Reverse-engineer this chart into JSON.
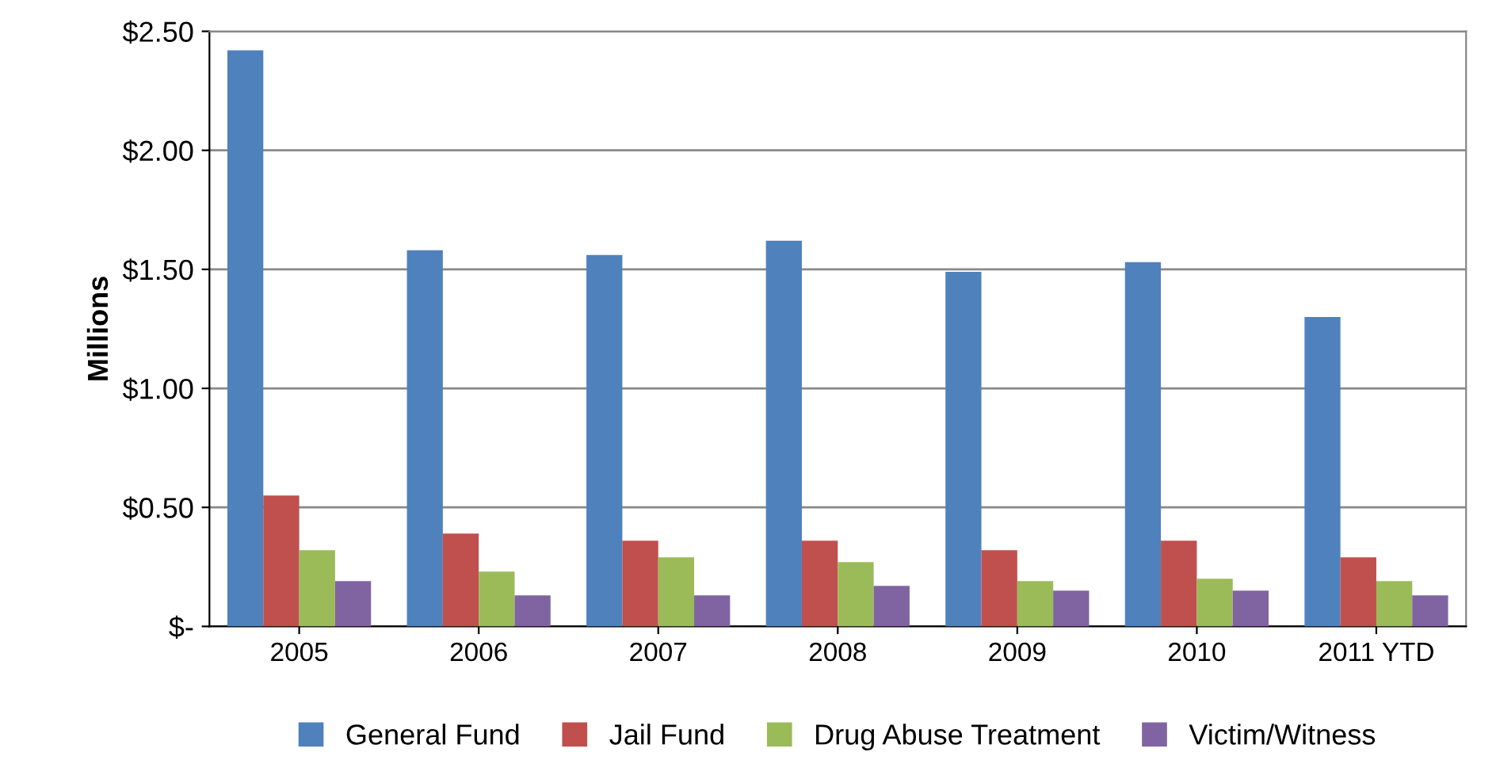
{
  "chart_data": {
    "type": "bar",
    "ylabel": "Millions",
    "categories": [
      "2005",
      "2006",
      "2007",
      "2008",
      "2009",
      "2010",
      "2011 YTD"
    ],
    "series": [
      {
        "name": "General Fund",
        "color": "#4f81bd",
        "values": [
          2.42,
          1.58,
          1.56,
          1.62,
          1.49,
          1.53,
          1.3
        ]
      },
      {
        "name": "Jail Fund",
        "color": "#c0504d",
        "values": [
          0.55,
          0.39,
          0.36,
          0.36,
          0.32,
          0.36,
          0.29
        ]
      },
      {
        "name": "Drug Abuse Treatment",
        "color": "#9bbb59",
        "values": [
          0.32,
          0.23,
          0.29,
          0.27,
          0.19,
          0.2,
          0.19
        ]
      },
      {
        "name": "Victim/Witness",
        "color": "#8064a2",
        "values": [
          0.19,
          0.13,
          0.13,
          0.17,
          0.15,
          0.15,
          0.13
        ]
      }
    ],
    "ylim": [
      0,
      2.5
    ],
    "yticks": [
      {
        "value": 0,
        "label": "$-"
      },
      {
        "value": 0.5,
        "label": "$0.50"
      },
      {
        "value": 1.0,
        "label": "$1.00"
      },
      {
        "value": 1.5,
        "label": "$1.50"
      },
      {
        "value": 2.0,
        "label": "$2.00"
      },
      {
        "value": 2.5,
        "label": "$2.50"
      }
    ],
    "grid": "y",
    "legend": "bottom"
  }
}
